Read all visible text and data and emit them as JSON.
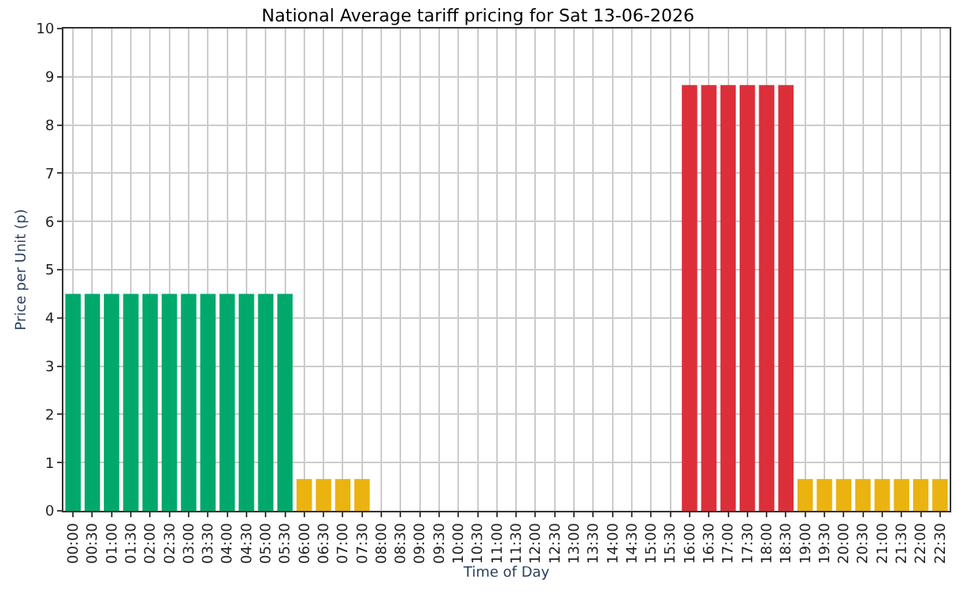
{
  "chart_data": {
    "type": "bar",
    "title": "National Average tariff pricing for Sat 13-06-2026",
    "xlabel": "Time of Day",
    "ylabel": "Price per Unit (p)",
    "categories": [
      "00:00",
      "00:30",
      "01:00",
      "01:30",
      "02:00",
      "02:30",
      "03:00",
      "03:30",
      "04:00",
      "04:30",
      "05:00",
      "05:30",
      "06:00",
      "06:30",
      "07:00",
      "07:30",
      "08:00",
      "08:30",
      "09:00",
      "09:30",
      "10:00",
      "10:30",
      "11:00",
      "11:30",
      "12:00",
      "12:30",
      "13:00",
      "13:30",
      "14:00",
      "14:30",
      "15:00",
      "15:30",
      "16:00",
      "16:30",
      "17:00",
      "17:30",
      "18:00",
      "18:30",
      "19:00",
      "19:30",
      "20:00",
      "20:30",
      "21:00",
      "21:30",
      "22:00",
      "22:30"
    ],
    "values": [
      4.5,
      4.5,
      4.5,
      4.5,
      4.5,
      4.5,
      4.5,
      4.5,
      4.5,
      4.5,
      4.5,
      4.5,
      0.66,
      0.66,
      0.66,
      0.66,
      null,
      null,
      null,
      null,
      null,
      null,
      null,
      null,
      null,
      null,
      null,
      null,
      null,
      null,
      null,
      null,
      8.83,
      8.83,
      8.83,
      8.83,
      8.83,
      8.83,
      0.66,
      0.66,
      0.66,
      0.66,
      0.66,
      0.66,
      0.66,
      0.66
    ],
    "colors": [
      "#00a96b",
      "#00a96b",
      "#00a96b",
      "#00a96b",
      "#00a96b",
      "#00a96b",
      "#00a96b",
      "#00a96b",
      "#00a96b",
      "#00a96b",
      "#00a96b",
      "#00a96b",
      "#eab30f",
      "#eab30f",
      "#eab30f",
      "#eab30f",
      "#eab30f",
      "#eab30f",
      "#eab30f",
      "#eab30f",
      "#eab30f",
      "#eab30f",
      "#eab30f",
      "#eab30f",
      "#eab30f",
      "#eab30f",
      "#eab30f",
      "#eab30f",
      "#eab30f",
      "#eab30f",
      "#eab30f",
      "#eab30f",
      "#dc2f3a",
      "#dc2f3a",
      "#dc2f3a",
      "#dc2f3a",
      "#dc2f3a",
      "#dc2f3a",
      "#eab30f",
      "#eab30f",
      "#eab30f",
      "#eab30f",
      "#eab30f",
      "#eab30f",
      "#eab30f",
      "#eab30f"
    ],
    "ylim": [
      0,
      10
    ],
    "yticks": [
      0,
      1,
      2,
      3,
      4,
      5,
      6,
      7,
      8,
      9,
      10
    ],
    "grid": true
  }
}
